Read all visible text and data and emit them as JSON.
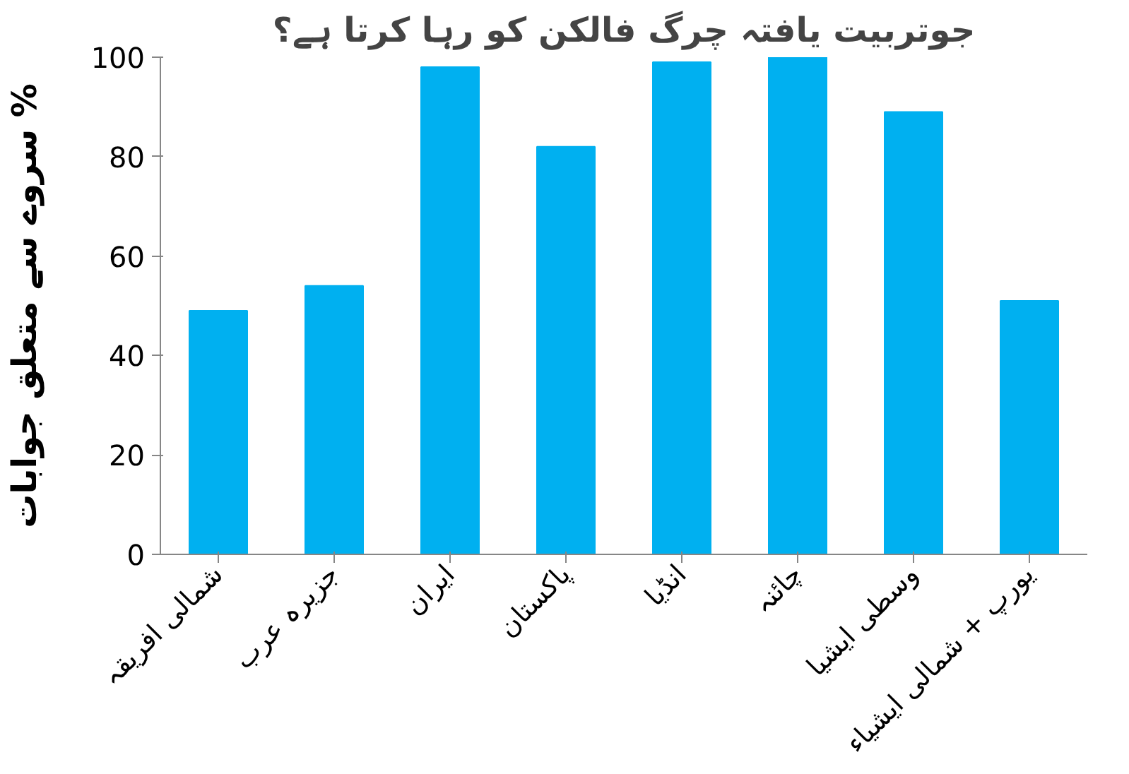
{
  "chart_data": {
    "type": "bar",
    "title": "جوتربیت یافتہ چرگ فالکن کو رہا کرتا ہے؟",
    "ylabel": "سروے سے متعلق جوابات %",
    "categories": [
      "شمالی افریقہ",
      "جزیرہ عرب",
      "ایران",
      "پاکستان",
      "انڈیا",
      "چائنہ",
      "وسطی ایشیا",
      "یورپ + شمالی ایشیاء"
    ],
    "values": [
      49,
      54,
      98,
      82,
      99,
      100,
      89,
      51
    ],
    "color": "#00b0f0",
    "ylim": [
      0,
      100
    ],
    "yticks": [
      0,
      20,
      40,
      60,
      80,
      100
    ],
    "grid": false
  }
}
